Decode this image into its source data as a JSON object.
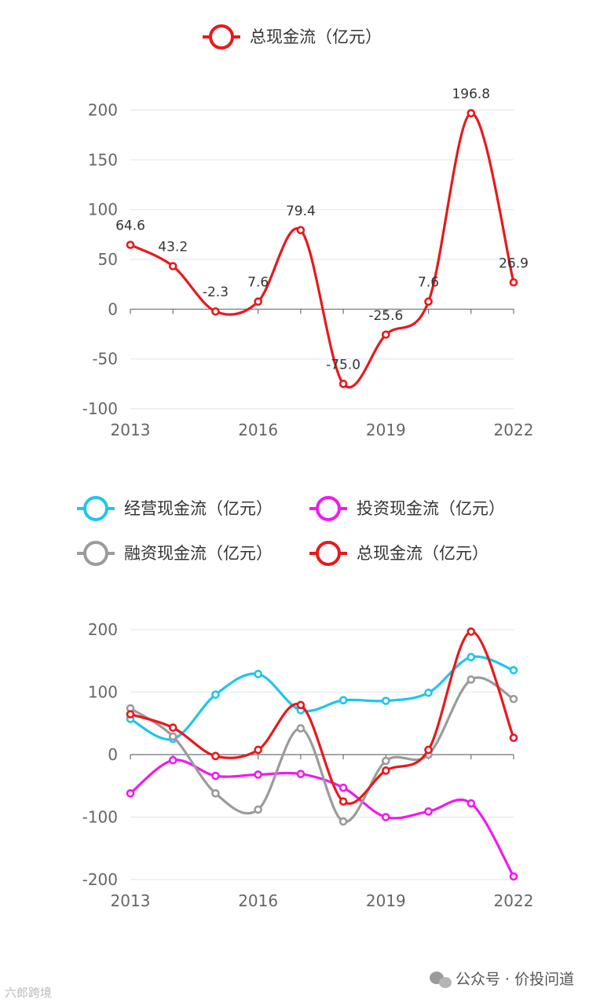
{
  "chart_data": [
    {
      "type": "line",
      "smooth": true,
      "title": "",
      "categories": [
        "2013",
        "2014",
        "2015",
        "2016",
        "2017",
        "2018",
        "2019",
        "2020",
        "2021",
        "2022"
      ],
      "x_tick_labels": [
        "2013",
        "2016",
        "2019",
        "2022"
      ],
      "ylim": [
        -100,
        200
      ],
      "y_ticks": [
        -100,
        -50,
        0,
        50,
        100,
        150,
        200
      ],
      "legend_position": "top",
      "show_data_labels": true,
      "series": [
        {
          "name": "总现金流（亿元）",
          "color": "#e8191b",
          "values": [
            64.6,
            43.2,
            -2.3,
            7.6,
            79.4,
            -75.0,
            -25.6,
            7.6,
            196.8,
            26.9
          ]
        }
      ]
    },
    {
      "type": "line",
      "smooth": true,
      "title": "",
      "categories": [
        "2013",
        "2014",
        "2015",
        "2016",
        "2017",
        "2018",
        "2019",
        "2020",
        "2021",
        "2022"
      ],
      "x_tick_labels": [
        "2013",
        "2016",
        "2019",
        "2022"
      ],
      "ylim": [
        -200,
        200
      ],
      "y_ticks": [
        -200,
        -100,
        0,
        100,
        200
      ],
      "legend_position": "top",
      "show_data_labels": false,
      "series": [
        {
          "name": "经营现金流（亿元）",
          "color": "#1fc6ea",
          "values": [
            57,
            25,
            96,
            129,
            71,
            87,
            86,
            99,
            156,
            135
          ]
        },
        {
          "name": "投资现金流（亿元）",
          "color": "#f01aef",
          "values": [
            -62,
            -9,
            -34,
            -32,
            -31,
            -53,
            -100,
            -91,
            -78,
            -195
          ]
        },
        {
          "name": "融资现金流（亿元）",
          "color": "#9b9b9b",
          "values": [
            74,
            29,
            -62,
            -88,
            42,
            -107,
            -10,
            0,
            120,
            89
          ]
        },
        {
          "name": "总现金流（亿元）",
          "color": "#e8191b",
          "values": [
            64.6,
            43.2,
            -2.3,
            7.6,
            79.4,
            -75.0,
            -25.6,
            7.6,
            196.8,
            26.9
          ]
        }
      ]
    }
  ],
  "watermark": {
    "left_text": "六郎跨境",
    "right_text": "公众号 · 价投问道"
  }
}
